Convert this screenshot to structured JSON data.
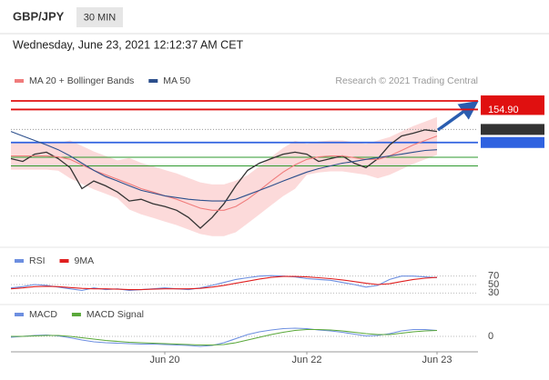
{
  "header": {
    "symbol": "GBP/JPY",
    "interval": "30 MIN",
    "timestamp": "Wednesday, June 23, 2021 12:12:37 AM CET"
  },
  "chart_data": [
    {
      "type": "line",
      "source": "Research © 2021 Trading Central",
      "color": "#333333",
      "xlim": [
        0,
        39
      ],
      "ylim": [
        151.0,
        155.44
      ],
      "values": [
        153.47,
        153.39,
        153.6,
        153.66,
        153.47,
        153.21,
        152.6,
        152.82,
        152.68,
        152.5,
        152.24,
        152.29,
        152.16,
        152.08,
        151.97,
        151.76,
        151.45,
        151.76,
        152.16,
        152.68,
        153.13,
        153.34,
        153.47,
        153.6,
        153.66,
        153.6,
        153.39,
        153.47,
        153.55,
        153.34,
        153.21,
        153.47,
        153.87,
        154.13,
        154.21,
        154.31,
        154.26
      ],
      "series": [
        {
          "name": "MA 20 + Bollinger Bands",
          "color": "#f07c7c",
          "band_color": "#fbd3d3",
          "values": [
            153.55,
            153.55,
            153.55,
            153.55,
            153.52,
            153.45,
            153.29,
            153.13,
            153.0,
            152.87,
            152.74,
            152.6,
            152.5,
            152.39,
            152.29,
            152.16,
            152.03,
            151.97,
            151.97,
            152.08,
            152.29,
            152.55,
            152.82,
            153.08,
            153.29,
            153.45,
            153.52,
            153.55,
            153.55,
            153.5,
            153.45,
            153.45,
            153.55,
            153.71,
            153.87,
            154.0,
            154.13
          ],
          "upper": [
            153.95,
            153.95,
            153.95,
            153.95,
            153.92,
            154.0,
            153.84,
            153.68,
            153.55,
            153.42,
            153.49,
            153.35,
            153.25,
            153.14,
            153.04,
            152.91,
            152.78,
            152.72,
            152.72,
            152.83,
            152.99,
            153.25,
            153.52,
            153.78,
            153.99,
            153.9,
            153.97,
            154.0,
            154.0,
            153.95,
            153.9,
            154.0,
            154.1,
            154.26,
            154.42,
            154.55,
            154.68
          ],
          "lower": [
            153.15,
            153.15,
            153.15,
            153.15,
            153.12,
            152.9,
            152.74,
            152.58,
            152.45,
            152.32,
            151.99,
            151.85,
            151.75,
            151.64,
            151.54,
            151.41,
            151.28,
            151.22,
            151.22,
            151.33,
            151.59,
            151.85,
            152.12,
            152.38,
            152.59,
            153.0,
            153.07,
            153.1,
            153.1,
            153.05,
            153.0,
            152.9,
            153.0,
            153.16,
            153.32,
            153.45,
            153.58
          ]
        },
        {
          "name": "MA 50",
          "color": "#2c4f8c",
          "values": [
            154.26,
            154.13,
            154.0,
            153.87,
            153.73,
            153.55,
            153.34,
            153.13,
            152.95,
            152.82,
            152.68,
            152.55,
            152.47,
            152.39,
            152.34,
            152.29,
            152.26,
            152.24,
            152.24,
            152.29,
            152.42,
            152.55,
            152.68,
            152.82,
            152.95,
            153.08,
            153.18,
            153.26,
            153.34,
            153.39,
            153.45,
            153.5,
            153.55,
            153.6,
            153.66,
            153.71,
            153.73
          ]
        }
      ],
      "levels": [
        {
          "value": 155.15,
          "color": "#e01010",
          "boxed": true
        },
        {
          "value": 154.9,
          "label": "154.90",
          "color": "#e01010",
          "boxed": true
        },
        {
          "value": 154.32,
          "color": "#333333",
          "boxed": true
        },
        {
          "value": 153.94,
          "color": "#2f62e0",
          "boxed": true
        },
        {
          "value": 153.51,
          "color": "#2e9a2e",
          "boxed": false
        },
        {
          "value": 153.26,
          "color": "#2e9a2e",
          "boxed": false
        }
      ]
    },
    {
      "type": "line",
      "xlim": [
        0,
        39
      ],
      "ylim": [
        20,
        80
      ],
      "yticks": [
        70,
        50,
        30
      ],
      "grid": true,
      "series": [
        {
          "name": "RSI",
          "color": "#6d8fe0",
          "values": [
            42,
            45,
            50,
            48,
            44,
            40,
            36,
            42,
            38,
            40,
            36,
            38,
            40,
            42,
            40,
            38,
            42,
            48,
            55,
            62,
            66,
            70,
            71,
            70,
            68,
            64,
            62,
            60,
            55,
            50,
            44,
            48,
            62,
            70,
            70,
            68,
            66
          ]
        },
        {
          "name": "9MA",
          "color": "#e02020",
          "values": [
            40,
            42,
            45,
            46,
            45,
            43,
            41,
            40,
            40,
            39,
            38,
            38,
            39,
            40,
            40,
            40,
            41,
            44,
            48,
            53,
            58,
            63,
            67,
            69,
            69,
            68,
            66,
            64,
            61,
            57,
            53,
            50,
            52,
            57,
            62,
            65,
            67
          ]
        }
      ]
    },
    {
      "type": "line",
      "xlim": [
        0,
        39
      ],
      "ylim": [
        -0.3,
        0.3
      ],
      "yticks": [
        0
      ],
      "grid": true,
      "xticks": [
        {
          "value": 13,
          "label": "Jun 20"
        },
        {
          "value": 25,
          "label": "Jun 22"
        },
        {
          "value": 36,
          "label": "Jun 23"
        }
      ],
      "series": [
        {
          "name": "MACD",
          "color": "#6d8fe0",
          "values": [
            -0.02,
            0,
            0.02,
            0.03,
            0.01,
            -0.03,
            -0.08,
            -0.12,
            -0.14,
            -0.15,
            -0.16,
            -0.17,
            -0.17,
            -0.18,
            -0.19,
            -0.2,
            -0.22,
            -0.2,
            -0.14,
            -0.05,
            0.04,
            0.1,
            0.14,
            0.17,
            0.18,
            0.17,
            0.14,
            0.12,
            0.09,
            0.05,
            0.01,
            0.02,
            0.06,
            0.12,
            0.15,
            0.15,
            0.13
          ]
        },
        {
          "name": "MACD Signal",
          "color": "#5aa83a",
          "values": [
            0,
            0,
            0.01,
            0.02,
            0.02,
            0,
            -0.03,
            -0.06,
            -0.09,
            -0.11,
            -0.13,
            -0.14,
            -0.15,
            -0.16,
            -0.17,
            -0.18,
            -0.19,
            -0.19,
            -0.18,
            -0.14,
            -0.08,
            -0.02,
            0.04,
            0.09,
            0.13,
            0.15,
            0.15,
            0.14,
            0.12,
            0.09,
            0.06,
            0.04,
            0.04,
            0.07,
            0.1,
            0.12,
            0.13
          ]
        }
      ]
    }
  ]
}
